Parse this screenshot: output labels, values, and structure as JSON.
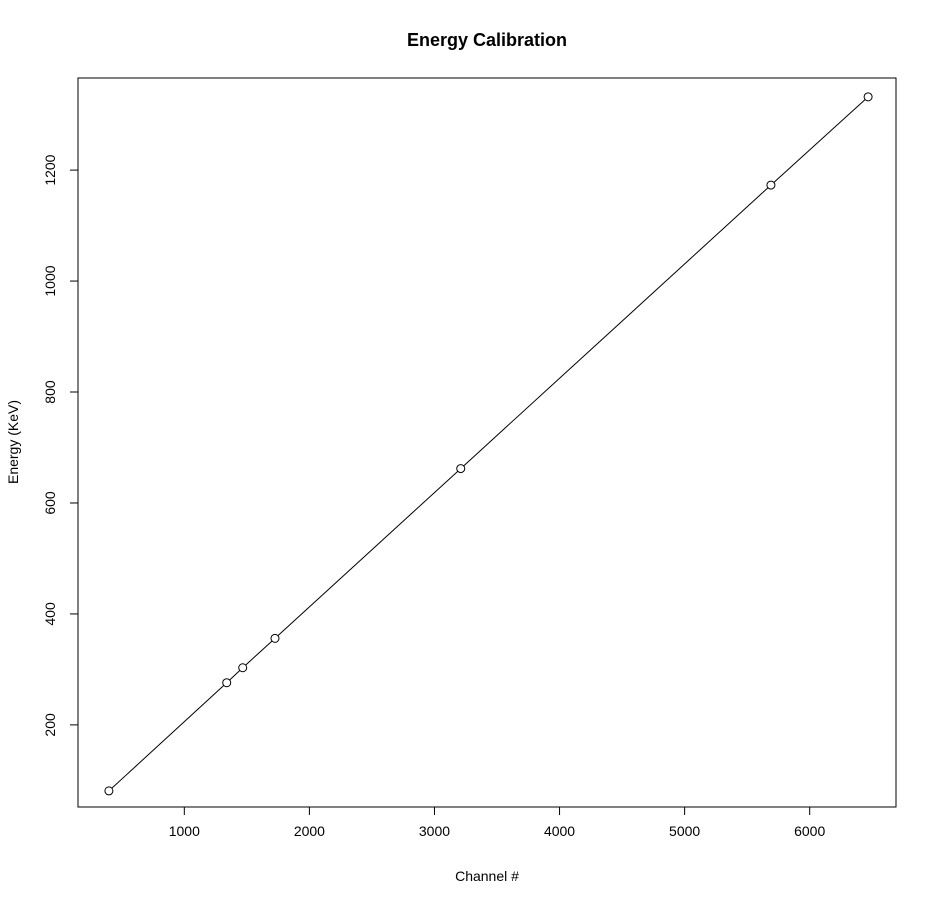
{
  "chart_data": {
    "type": "line",
    "title": "Energy Calibration",
    "xlabel": "Channel #",
    "ylabel": "Energy (KeV)",
    "xlim": [
      150,
      6690
    ],
    "ylim": [
      52,
      1366
    ],
    "x_ticks": [
      1000,
      2000,
      3000,
      4000,
      5000,
      6000
    ],
    "y_ticks": [
      200,
      400,
      600,
      800,
      1000,
      1200
    ],
    "grid": false,
    "legend": "none",
    "markers": "open-circle",
    "line_color": "#000000",
    "series": [
      {
        "x": [
          397,
          1339,
          1467,
          1725,
          3210,
          5690,
          6467
        ],
        "y": [
          81,
          276,
          303,
          356,
          662,
          1173,
          1332
        ]
      }
    ]
  }
}
